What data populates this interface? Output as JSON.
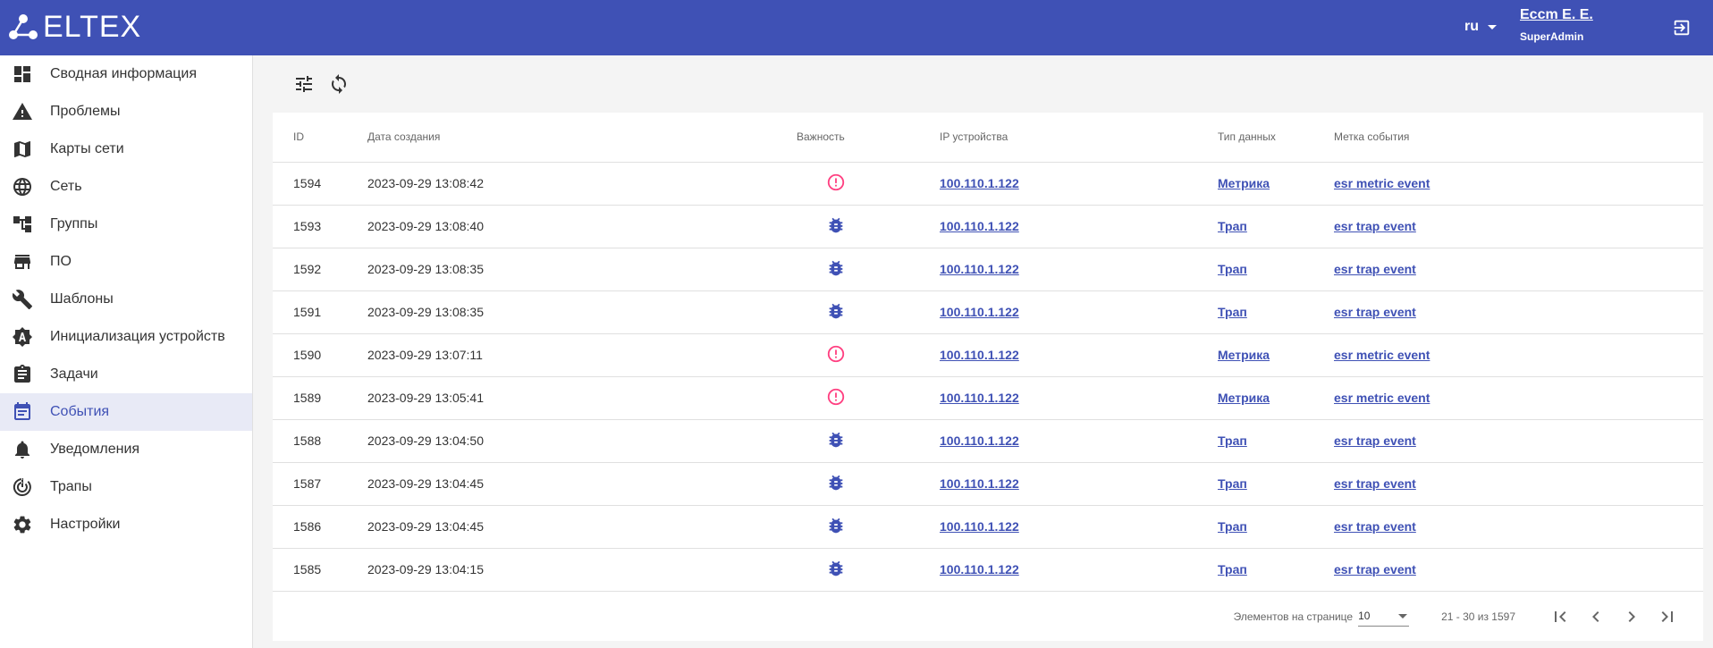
{
  "header": {
    "logo": "ELTEX",
    "lang": "ru",
    "user_name": "Еccm Е. Е.",
    "user_role": "SuperAdmin",
    "brand_color": "#3f51b5"
  },
  "sidebar": {
    "items": [
      {
        "label": "Сводная информация",
        "icon": "dashboard-icon"
      },
      {
        "label": "Проблемы",
        "icon": "warning-icon"
      },
      {
        "label": "Карты сети",
        "icon": "map-icon"
      },
      {
        "label": "Сеть",
        "icon": "globe-icon"
      },
      {
        "label": "Группы",
        "icon": "tree-icon"
      },
      {
        "label": "ПО",
        "icon": "store-icon"
      },
      {
        "label": "Шаблоны",
        "icon": "wrench-icon"
      },
      {
        "label": "Инициализация устройств",
        "icon": "auto-icon"
      },
      {
        "label": "Задачи",
        "icon": "clipboard-icon"
      },
      {
        "label": "События",
        "icon": "event-icon",
        "active": true
      },
      {
        "label": "Уведомления",
        "icon": "bell-icon"
      },
      {
        "label": "Трапы",
        "icon": "trap-icon"
      },
      {
        "label": "Настройки",
        "icon": "gear-icon"
      }
    ]
  },
  "table": {
    "headers": [
      "ID",
      "Дата создания",
      "Важность",
      "IP устройства",
      "Тип данных",
      "Метка события"
    ],
    "rows": [
      {
        "id": "1594",
        "date": "2023-09-29 13:08:42",
        "severity": "error",
        "ip": "100.110.1.122",
        "type": "Метрика",
        "label": "esr metric event"
      },
      {
        "id": "1593",
        "date": "2023-09-29 13:08:40",
        "severity": "debug",
        "ip": "100.110.1.122",
        "type": "Трап",
        "label": "esr trap event"
      },
      {
        "id": "1592",
        "date": "2023-09-29 13:08:35",
        "severity": "debug",
        "ip": "100.110.1.122",
        "type": "Трап",
        "label": "esr trap event"
      },
      {
        "id": "1591",
        "date": "2023-09-29 13:08:35",
        "severity": "debug",
        "ip": "100.110.1.122",
        "type": "Трап",
        "label": "esr trap event"
      },
      {
        "id": "1590",
        "date": "2023-09-29 13:07:11",
        "severity": "error",
        "ip": "100.110.1.122",
        "type": "Метрика",
        "label": "esr metric event"
      },
      {
        "id": "1589",
        "date": "2023-09-29 13:05:41",
        "severity": "error",
        "ip": "100.110.1.122",
        "type": "Метрика",
        "label": "esr metric event"
      },
      {
        "id": "1588",
        "date": "2023-09-29 13:04:50",
        "severity": "debug",
        "ip": "100.110.1.122",
        "type": "Трап",
        "label": "esr trap event"
      },
      {
        "id": "1587",
        "date": "2023-09-29 13:04:45",
        "severity": "debug",
        "ip": "100.110.1.122",
        "type": "Трап",
        "label": "esr trap event"
      },
      {
        "id": "1586",
        "date": "2023-09-29 13:04:45",
        "severity": "debug",
        "ip": "100.110.1.122",
        "type": "Трап",
        "label": "esr trap event"
      },
      {
        "id": "1585",
        "date": "2023-09-29 13:04:15",
        "severity": "debug",
        "ip": "100.110.1.122",
        "type": "Трап",
        "label": "esr trap event"
      }
    ],
    "severity_colors": {
      "error": "#ff4081",
      "debug": "#3f51b5"
    }
  },
  "pagination": {
    "per_page_label": "Элементов на странице",
    "per_page": "10",
    "range": "21 - 30 из 1597"
  }
}
